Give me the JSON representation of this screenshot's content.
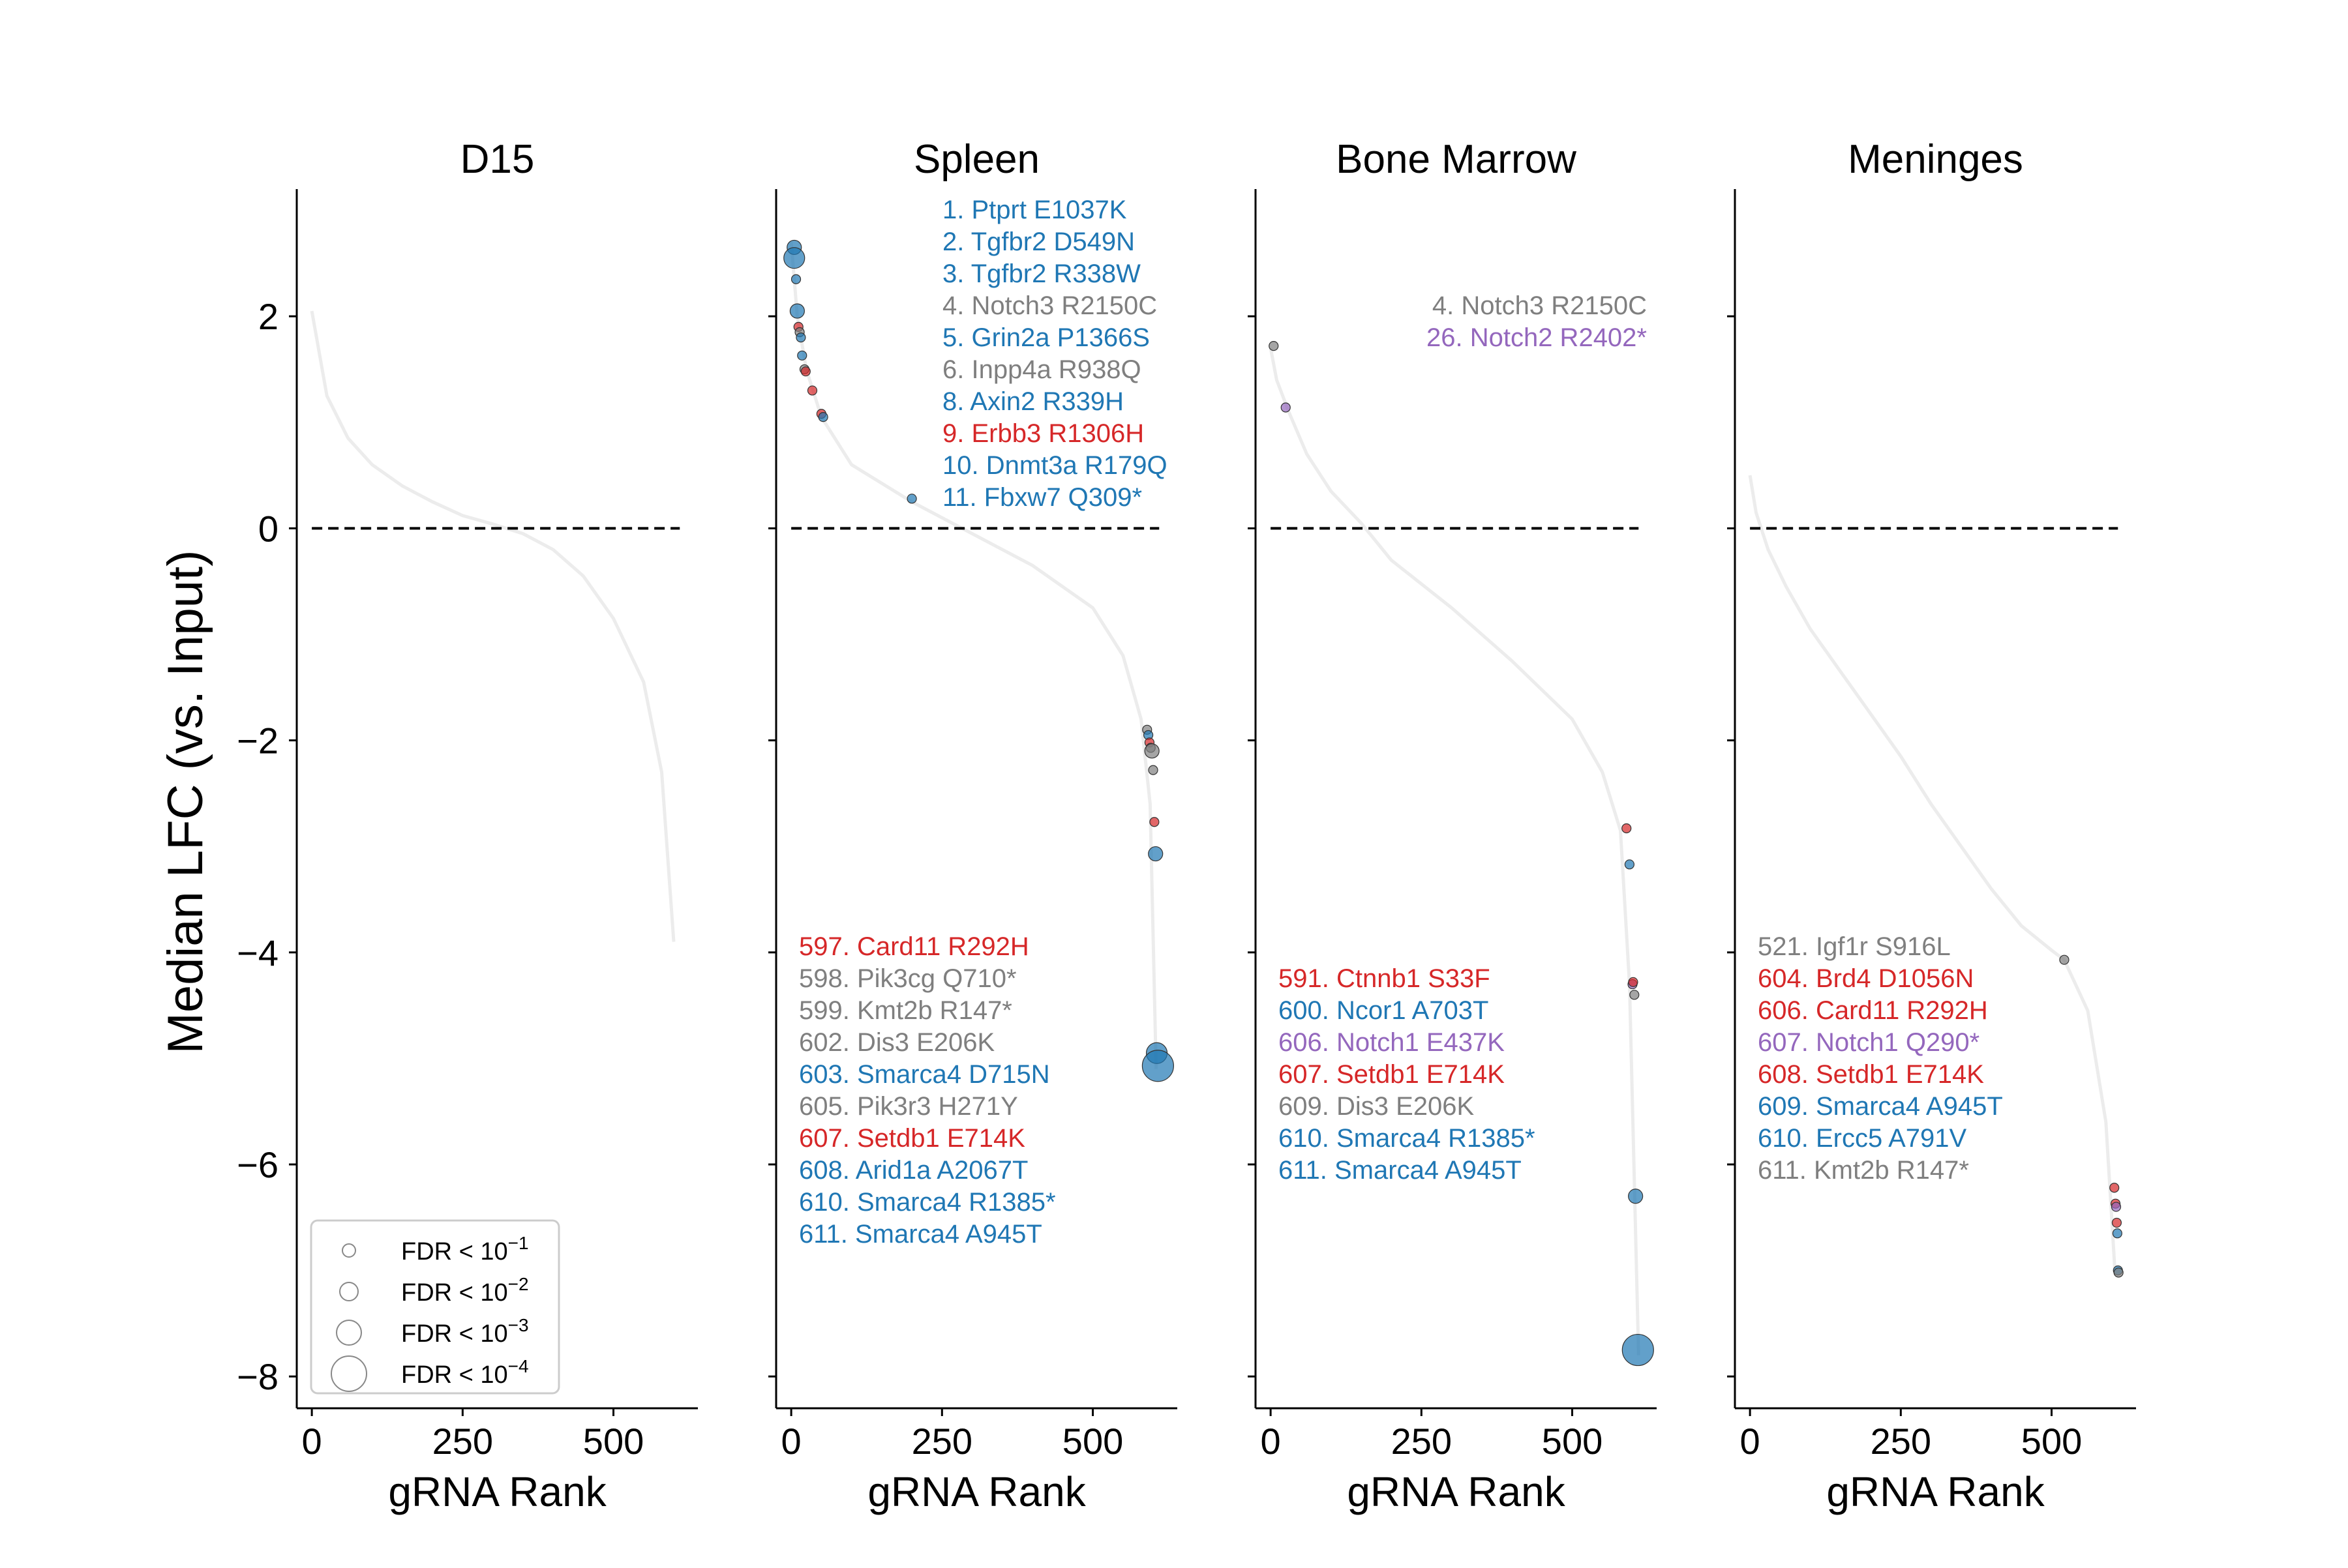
{
  "figure": {
    "ylabel": "Median LFC (vs. Input)",
    "xlabel": "gRNA Rank",
    "xticks": [
      0,
      250,
      500
    ],
    "yticks": [
      2,
      0,
      -2,
      -4,
      -6,
      -8
    ],
    "ylim": [
      -8.3,
      3.2
    ],
    "xlim": [
      -25,
      640
    ],
    "colors": {
      "blue": "#1f77b4",
      "gray": "#7f7f7f",
      "red": "#d62728",
      "purple": "#9467bd",
      "curve": "#ececec",
      "dashed": "#000000"
    },
    "legend": {
      "placement": "lower-left",
      "entries": [
        "FDR < 10^-1",
        "FDR < 10^-2",
        "FDR < 10^-3",
        "FDR < 10^-4"
      ],
      "base": "FDR < 10",
      "exps": [
        "−1",
        "−2",
        "−3",
        "−4"
      ]
    }
  },
  "chart_data": [
    {
      "type": "scatter",
      "title": "D15",
      "curve": [
        [
          0,
          2.05
        ],
        [
          25,
          1.25
        ],
        [
          60,
          0.85
        ],
        [
          100,
          0.6
        ],
        [
          150,
          0.4
        ],
        [
          200,
          0.25
        ],
        [
          250,
          0.12
        ],
        [
          300,
          0.04
        ],
        [
          350,
          -0.05
        ],
        [
          400,
          -0.2
        ],
        [
          450,
          -0.45
        ],
        [
          500,
          -0.85
        ],
        [
          550,
          -1.45
        ],
        [
          580,
          -2.3
        ],
        [
          600,
          -3.9
        ]
      ],
      "points": [],
      "labels_top": [],
      "labels_bottom": []
    },
    {
      "type": "scatter",
      "title": "Spleen",
      "curve": [
        [
          0,
          2.7
        ],
        [
          10,
          2.0
        ],
        [
          25,
          1.5
        ],
        [
          50,
          1.05
        ],
        [
          100,
          0.6
        ],
        [
          200,
          0.25
        ],
        [
          300,
          -0.05
        ],
        [
          400,
          -0.35
        ],
        [
          500,
          -0.75
        ],
        [
          550,
          -1.2
        ],
        [
          580,
          -1.8
        ],
        [
          595,
          -2.6
        ],
        [
          605,
          -5.1
        ]
      ],
      "points": [
        {
          "x": 5,
          "y": 2.65,
          "fdr": 2,
          "color": "blue"
        },
        {
          "x": 5,
          "y": 2.55,
          "fdr": 3,
          "color": "blue"
        },
        {
          "x": 8,
          "y": 2.35,
          "fdr": 1,
          "color": "blue"
        },
        {
          "x": 10,
          "y": 2.05,
          "fdr": 2,
          "color": "blue"
        },
        {
          "x": 12,
          "y": 1.9,
          "fdr": 1,
          "color": "red"
        },
        {
          "x": 14,
          "y": 1.85,
          "fdr": 1,
          "color": "gray"
        },
        {
          "x": 16,
          "y": 1.8,
          "fdr": 1,
          "color": "blue"
        },
        {
          "x": 18,
          "y": 1.63,
          "fdr": 1,
          "color": "blue"
        },
        {
          "x": 22,
          "y": 1.5,
          "fdr": 1,
          "color": "gray"
        },
        {
          "x": 24,
          "y": 1.48,
          "fdr": 1,
          "color": "red"
        },
        {
          "x": 35,
          "y": 1.3,
          "fdr": 1,
          "color": "red"
        },
        {
          "x": 50,
          "y": 1.08,
          "fdr": 1,
          "color": "red"
        },
        {
          "x": 53,
          "y": 1.05,
          "fdr": 1,
          "color": "blue"
        },
        {
          "x": 200,
          "y": 0.28,
          "fdr": 1,
          "color": "blue"
        },
        {
          "x": 590,
          "y": -1.9,
          "fdr": 1,
          "color": "gray"
        },
        {
          "x": 592,
          "y": -1.95,
          "fdr": 1,
          "color": "blue"
        },
        {
          "x": 594,
          "y": -2.02,
          "fdr": 1,
          "color": "red"
        },
        {
          "x": 596,
          "y": -2.07,
          "fdr": 1,
          "color": "gray"
        },
        {
          "x": 598,
          "y": -2.1,
          "fdr": 2,
          "color": "gray"
        },
        {
          "x": 600,
          "y": -2.28,
          "fdr": 1,
          "color": "gray"
        },
        {
          "x": 602,
          "y": -2.77,
          "fdr": 1,
          "color": "red"
        },
        {
          "x": 604,
          "y": -3.07,
          "fdr": 2,
          "color": "blue"
        },
        {
          "x": 606,
          "y": -4.95,
          "fdr": 3,
          "color": "blue"
        },
        {
          "x": 608,
          "y": -5.07,
          "fdr": 4,
          "color": "blue"
        }
      ],
      "labels_top": [
        {
          "text": "1. Ptprt E1037K",
          "color": "blue"
        },
        {
          "text": "2. Tgfbr2 D549N",
          "color": "blue"
        },
        {
          "text": "3. Tgfbr2 R338W",
          "color": "blue"
        },
        {
          "text": "4. Notch3 R2150C",
          "color": "gray"
        },
        {
          "text": "5. Grin2a P1366S",
          "color": "blue"
        },
        {
          "text": "6. Inpp4a R938Q",
          "color": "gray"
        },
        {
          "text": "8. Axin2 R339H",
          "color": "blue"
        },
        {
          "text": "9. Erbb3 R1306H",
          "color": "red"
        },
        {
          "text": "10. Dnmt3a R179Q",
          "color": "blue"
        },
        {
          "text": "11. Fbxw7 Q309*",
          "color": "blue"
        }
      ],
      "labels_bottom": [
        {
          "text": "597. Card11 R292H",
          "color": "red"
        },
        {
          "text": "598. Pik3cg Q710*",
          "color": "gray"
        },
        {
          "text": "599. Kmt2b R147*",
          "color": "gray"
        },
        {
          "text": "602. Dis3 E206K",
          "color": "gray"
        },
        {
          "text": "603. Smarca4 D715N",
          "color": "blue"
        },
        {
          "text": "605. Pik3r3 H271Y",
          "color": "gray"
        },
        {
          "text": "607. Setdb1 E714K",
          "color": "red"
        },
        {
          "text": "608. Arid1a A2067T",
          "color": "blue"
        },
        {
          "text": "610. Smarca4 R1385*",
          "color": "blue"
        },
        {
          "text": "611. Smarca4 A945T",
          "color": "blue"
        }
      ]
    },
    {
      "type": "scatter",
      "title": "Bone Marrow",
      "curve": [
        [
          0,
          1.7
        ],
        [
          10,
          1.4
        ],
        [
          30,
          1.1
        ],
        [
          60,
          0.7
        ],
        [
          100,
          0.35
        ],
        [
          150,
          0.05
        ],
        [
          200,
          -0.3
        ],
        [
          300,
          -0.75
        ],
        [
          400,
          -1.25
        ],
        [
          500,
          -1.8
        ],
        [
          550,
          -2.3
        ],
        [
          580,
          -2.85
        ],
        [
          595,
          -4.3
        ],
        [
          610,
          -7.8
        ]
      ],
      "points": [
        {
          "x": 5,
          "y": 1.72,
          "fdr": 1,
          "color": "gray"
        },
        {
          "x": 25,
          "y": 1.14,
          "fdr": 1,
          "color": "purple"
        },
        {
          "x": 590,
          "y": -2.83,
          "fdr": 1,
          "color": "red"
        },
        {
          "x": 595,
          "y": -3.17,
          "fdr": 1,
          "color": "blue"
        },
        {
          "x": 600,
          "y": -4.3,
          "fdr": 1,
          "color": "purple"
        },
        {
          "x": 601,
          "y": -4.28,
          "fdr": 1,
          "color": "red"
        },
        {
          "x": 603,
          "y": -4.4,
          "fdr": 1,
          "color": "gray"
        },
        {
          "x": 605,
          "y": -6.3,
          "fdr": 2,
          "color": "blue"
        },
        {
          "x": 609,
          "y": -7.75,
          "fdr": 4,
          "color": "blue"
        }
      ],
      "labels_top": [
        {
          "text": "4. Notch3 R2150C",
          "color": "gray"
        },
        {
          "text": "26. Notch2 R2402*",
          "color": "purple"
        }
      ],
      "labels_bottom": [
        {
          "text": "591. Ctnnb1 S33F",
          "color": "red"
        },
        {
          "text": "600. Ncor1 A703T",
          "color": "blue"
        },
        {
          "text": "606. Notch1 E437K",
          "color": "purple"
        },
        {
          "text": "607. Setdb1 E714K",
          "color": "red"
        },
        {
          "text": "609. Dis3 E206K",
          "color": "gray"
        },
        {
          "text": "610. Smarca4 R1385*",
          "color": "blue"
        },
        {
          "text": "611. Smarca4 A945T",
          "color": "blue"
        }
      ]
    },
    {
      "type": "scatter",
      "title": "Meninges",
      "curve": [
        [
          0,
          0.5
        ],
        [
          10,
          0.15
        ],
        [
          30,
          -0.2
        ],
        [
          60,
          -0.55
        ],
        [
          100,
          -0.95
        ],
        [
          150,
          -1.35
        ],
        [
          200,
          -1.75
        ],
        [
          250,
          -2.15
        ],
        [
          300,
          -2.6
        ],
        [
          350,
          -3.0
        ],
        [
          400,
          -3.4
        ],
        [
          450,
          -3.75
        ],
        [
          500,
          -3.98
        ],
        [
          521,
          -4.07
        ],
        [
          560,
          -4.55
        ],
        [
          590,
          -5.6
        ],
        [
          605,
          -7.0
        ]
      ],
      "points": [
        {
          "x": 521,
          "y": -4.07,
          "fdr": 1,
          "color": "gray"
        },
        {
          "x": 604,
          "y": -6.22,
          "fdr": 1,
          "color": "red"
        },
        {
          "x": 606,
          "y": -6.37,
          "fdr": 1,
          "color": "red"
        },
        {
          "x": 607,
          "y": -6.4,
          "fdr": 1,
          "color": "purple"
        },
        {
          "x": 608,
          "y": -6.55,
          "fdr": 1,
          "color": "red"
        },
        {
          "x": 609,
          "y": -6.65,
          "fdr": 1,
          "color": "blue"
        },
        {
          "x": 610,
          "y": -7.0,
          "fdr": 1,
          "color": "blue"
        },
        {
          "x": 611,
          "y": -7.02,
          "fdr": 1,
          "color": "gray"
        }
      ],
      "labels_top": [],
      "labels_bottom": [
        {
          "text": "521. Igf1r S916L",
          "color": "gray"
        },
        {
          "text": "604. Brd4 D1056N",
          "color": "red"
        },
        {
          "text": "606. Card11 R292H",
          "color": "red"
        },
        {
          "text": "607. Notch1 Q290*",
          "color": "purple"
        },
        {
          "text": "608. Setdb1 E714K",
          "color": "red"
        },
        {
          "text": "609. Smarca4 A945T",
          "color": "blue"
        },
        {
          "text": "610. Ercc5 A791V",
          "color": "blue"
        },
        {
          "text": "611. Kmt2b R147*",
          "color": "gray"
        }
      ]
    }
  ]
}
